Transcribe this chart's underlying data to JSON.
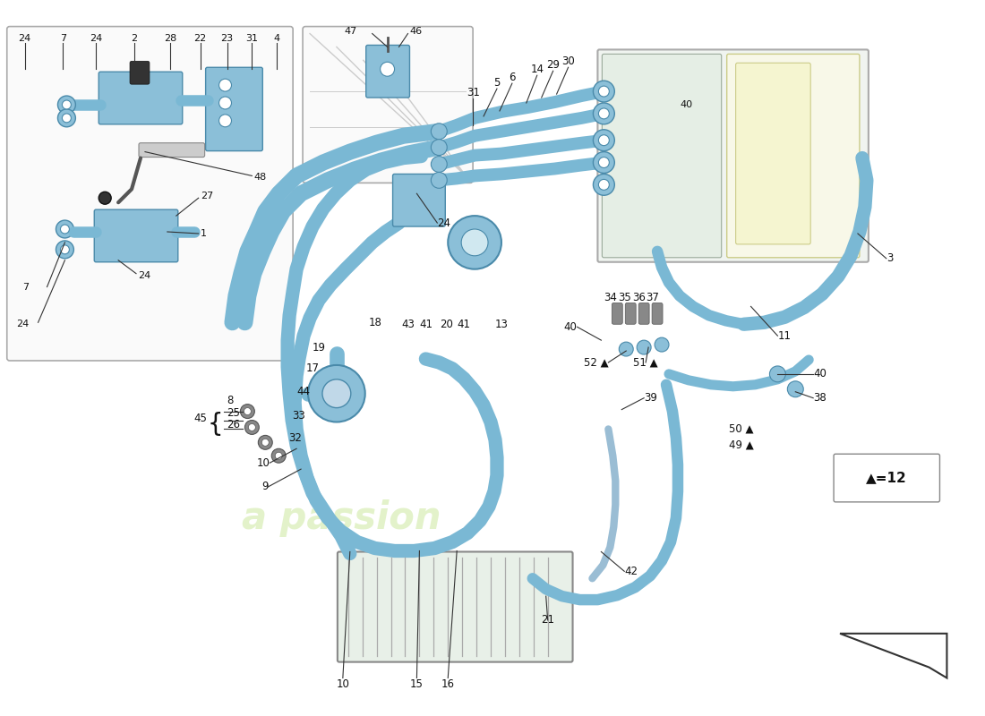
{
  "background_color": "#ffffff",
  "pipe_color": "#7ab8d4",
  "pipe_color2": "#89c4de",
  "component_color": "#8bbfd8",
  "component_edge": "#4a8aaa",
  "line_color": "#222222",
  "text_color": "#111111",
  "watermark_color": "#cce8a0"
}
